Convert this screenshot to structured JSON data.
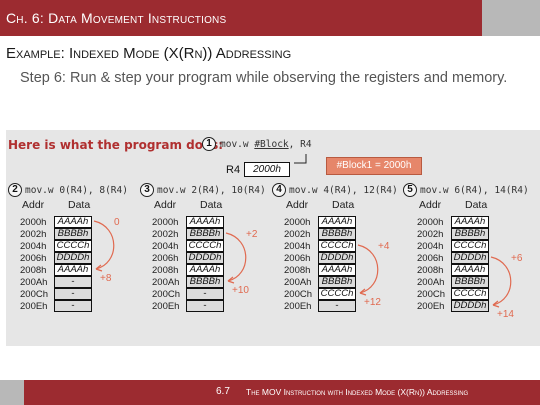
{
  "header": {
    "title": "Ch. 6: Data Movement Instructions",
    "subtitle": "Example: Indexed Mode (X(Rn)) Addressing",
    "step_text": "Step 6: Run & step your program while observing the registers and memory."
  },
  "figure": {
    "heading": "Here is what the program does:",
    "first_step": {
      "num": "1",
      "instr": "mov.w #Block, R4",
      "instr_pre": "mov.w ",
      "instr_u": "#Block",
      "instr_post": ", R4"
    },
    "r4_label": "R4",
    "r4_value": "2000h",
    "block_note": "#Block1 = 2000h",
    "col_addr": "Addr",
    "col_data": "Data",
    "addresses": [
      "2000h",
      "2002h",
      "2004h",
      "2006h",
      "2008h",
      "200Ah",
      "200Ch",
      "200Eh"
    ],
    "steps": [
      {
        "num": "2",
        "instr": "mov.w 0(R4), 8(R4)",
        "data": [
          "AAAAh",
          "BBBBh",
          "CCCCh",
          "DDDDh",
          "AAAAh",
          "-",
          "-",
          "-"
        ],
        "from_label": "0",
        "to_label": "+8"
      },
      {
        "num": "3",
        "instr": "mov.w 2(R4), 10(R4)",
        "data": [
          "AAAAh",
          "BBBBh",
          "CCCCh",
          "DDDDh",
          "AAAAh",
          "BBBBh",
          "-",
          "-"
        ],
        "from_label": "+2",
        "to_label": "+10"
      },
      {
        "num": "4",
        "instr": "mov.w 4(R4), 12(R4)",
        "data": [
          "AAAAh",
          "BBBBh",
          "CCCCh",
          "DDDDh",
          "AAAAh",
          "BBBBh",
          "CCCCh",
          "-"
        ],
        "from_label": "+4",
        "to_label": "+12"
      },
      {
        "num": "5",
        "instr": "mov.w 6(R4), 14(R4)",
        "data": [
          "AAAAh",
          "BBBBh",
          "CCCCh",
          "DDDDh",
          "AAAAh",
          "BBBBh",
          "CCCCh",
          "DDDDh"
        ],
        "from_label": "+6",
        "to_label": "+14"
      }
    ]
  },
  "footer": {
    "page": "6.7",
    "text": "The MOV Instruction with Indexed Mode (X(Rn)) Addressing"
  },
  "colors": {
    "bar": "#9c2b30",
    "accent": "#b8b8b8",
    "arrow": "#e06a50",
    "note": "#e6866a"
  }
}
